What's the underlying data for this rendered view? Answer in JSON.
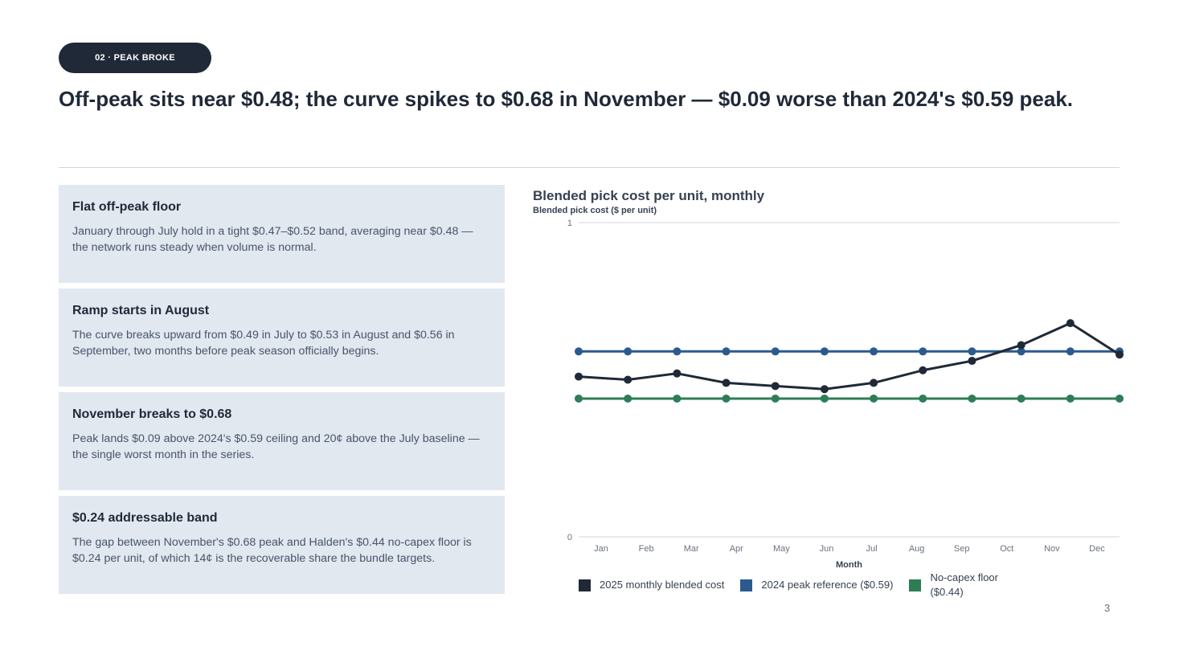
{
  "section_tag": "02 · PEAK BROKE",
  "headline": "Off-peak sits near $0.48; the curve spikes to $0.68 in November — $0.09 worse than 2024's $0.59 peak.",
  "cards": [
    {
      "title": "Flat off-peak floor",
      "body": "January through July hold in a tight $0.47–$0.52 band, averaging near $0.48 — the network runs steady when volume is normal."
    },
    {
      "title": "Ramp starts in August",
      "body": "The curve breaks upward from $0.49 in July to $0.53 in August and $0.56 in September, two months before peak season officially begins."
    },
    {
      "title": "November breaks to $0.68",
      "body": "Peak lands $0.09 above 2024's $0.59 ceiling and 20¢ above the July baseline — the single worst month in the series."
    },
    {
      "title": "$0.24 addressable band",
      "body": "The gap between November's $0.68 peak and Halden's $0.44 no-capex floor is $0.24 per unit, of which 14¢ is the recoverable share the bundle targets."
    }
  ],
  "chart_data": {
    "type": "line",
    "title": "Blended pick cost per unit, monthly",
    "ylabel": "Blended pick cost ($ per unit)",
    "xlabel": "Month",
    "categories": [
      "Jan",
      "Feb",
      "Mar",
      "Apr",
      "May",
      "Jun",
      "Jul",
      "Aug",
      "Sep",
      "Oct",
      "Nov",
      "Dec"
    ],
    "ylim": [
      0,
      1
    ],
    "yticks": [
      "0",
      "1"
    ],
    "grid": false,
    "legend_position": "bottom",
    "series": [
      {
        "name": "2025 monthly blended cost",
        "color": "#1f2937",
        "values": [
          0.51,
          0.5,
          0.52,
          0.49,
          0.48,
          0.47,
          0.49,
          0.53,
          0.56,
          0.61,
          0.68,
          0.58
        ]
      },
      {
        "name": "2024 peak reference ($0.59)",
        "color": "#2b5a8e",
        "values": [
          0.59,
          0.59,
          0.59,
          0.59,
          0.59,
          0.59,
          0.59,
          0.59,
          0.59,
          0.59,
          0.59,
          0.59
        ]
      },
      {
        "name": "No-capex floor ($0.44)",
        "color": "#2e7d55",
        "values": [
          0.44,
          0.44,
          0.44,
          0.44,
          0.44,
          0.44,
          0.44,
          0.44,
          0.44,
          0.44,
          0.44,
          0.44
        ]
      }
    ]
  },
  "page_number": "3"
}
